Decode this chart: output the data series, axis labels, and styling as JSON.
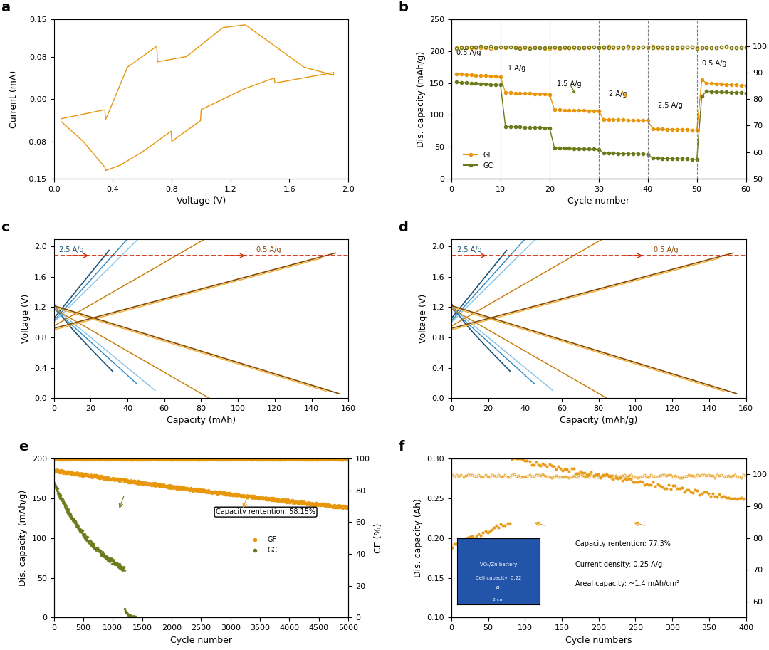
{
  "colors": {
    "orange": "#E8960A",
    "dark_olive": "#6B7A1A",
    "blue_dark": "#1A5276",
    "blue_mid": "#2E86C1",
    "blue_light": "#85C1E9",
    "orange_dark": "#884A00",
    "orange_mid": "#C87800",
    "orange_light": "#F0B030",
    "red_dashed": "#CC2200",
    "ce_open_orange": "#E8960A",
    "ce_open_olive": "#6B7A1A"
  },
  "panel_labels": [
    "a",
    "b",
    "c",
    "d",
    "e",
    "f"
  ],
  "panel_label_fontsize": 14,
  "axis_label_fontsize": 9,
  "tick_fontsize": 8,
  "annotation_fontsize": 8,
  "background_color": "#ffffff"
}
